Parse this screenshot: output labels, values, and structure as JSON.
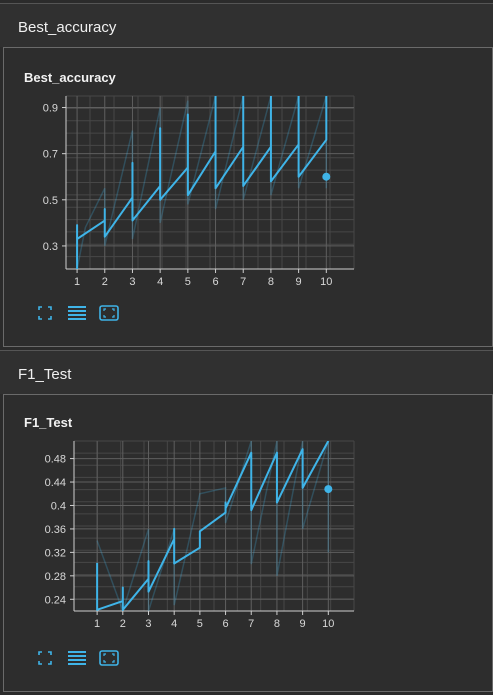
{
  "sections": [
    {
      "header_title": "Best_accuracy",
      "card_title": "Best_accuracy",
      "chart_data": {
        "type": "line",
        "title": "Best_accuracy",
        "xlabel": "",
        "ylabel": "",
        "x_ticks": [
          1,
          2,
          3,
          4,
          5,
          6,
          7,
          8,
          9,
          10
        ],
        "y_ticks": [
          0.3,
          0.5,
          0.7,
          0.9
        ],
        "xlim": [
          0.6,
          11
        ],
        "ylim": [
          0.2,
          0.95
        ],
        "grid": true,
        "line_color": "#3fb4e8",
        "series": [
          {
            "values": [
              [
                1,
                0.2
              ],
              [
                1,
                0.39
              ],
              [
                1,
                0.33
              ],
              [
                2,
                0.41
              ],
              [
                2,
                0.46
              ],
              [
                2,
                0.34
              ],
              [
                3,
                0.51
              ],
              [
                3,
                0.66
              ],
              [
                3,
                0.41
              ],
              [
                4,
                0.56
              ],
              [
                4,
                0.81
              ],
              [
                4,
                0.5
              ],
              [
                5,
                0.64
              ],
              [
                5,
                0.87
              ],
              [
                5,
                0.52
              ],
              [
                6,
                0.71
              ],
              [
                6,
                0.95
              ],
              [
                6,
                0.55
              ],
              [
                7,
                0.73
              ],
              [
                7,
                0.95
              ],
              [
                7,
                0.56
              ],
              [
                8,
                0.73
              ],
              [
                8,
                0.95
              ],
              [
                8,
                0.58
              ],
              [
                9,
                0.74
              ],
              [
                9,
                0.95
              ],
              [
                9,
                0.6
              ],
              [
                10,
                0.76
              ],
              [
                10,
                0.95
              ]
            ],
            "end_point": [
              10,
              0.6
            ]
          }
        ],
        "faint_series": [
          [
            [
              1,
              0.2
            ],
            [
              1.3,
              0.38
            ],
            [
              2,
              0.55
            ],
            [
              2,
              0.3
            ],
            [
              3,
              0.8
            ],
            [
              3,
              0.33
            ],
            [
              4,
              0.9
            ],
            [
              4,
              0.4
            ],
            [
              5,
              0.93
            ],
            [
              5,
              0.48
            ],
            [
              6,
              0.95
            ],
            [
              6,
              0.46
            ],
            [
              7,
              0.95
            ],
            [
              7,
              0.5
            ],
            [
              8,
              0.95
            ],
            [
              8,
              0.52
            ],
            [
              9,
              0.95
            ],
            [
              9,
              0.55
            ],
            [
              10,
              0.95
            ],
            [
              10,
              0.55
            ]
          ]
        ]
      }
    },
    {
      "header_title": "F1_Test",
      "card_title": "F1_Test",
      "chart_data": {
        "type": "line",
        "title": "F1_Test",
        "xlabel": "",
        "ylabel": "",
        "x_ticks": [
          1,
          2,
          3,
          4,
          5,
          6,
          7,
          8,
          9,
          10
        ],
        "y_ticks": [
          0.24,
          0.28,
          0.32,
          0.36,
          0.4,
          0.44,
          0.48
        ],
        "xlim": [
          0.1,
          11
        ],
        "ylim": [
          0.22,
          0.51
        ],
        "grid": true,
        "line_color": "#3fb4e8",
        "series": [
          {
            "values": [
              [
                1,
                0.302
              ],
              [
                1,
                0.222
              ],
              [
                2,
                0.237
              ],
              [
                2,
                0.26
              ],
              [
                2,
                0.222
              ],
              [
                3,
                0.275
              ],
              [
                3,
                0.305
              ],
              [
                3,
                0.253
              ],
              [
                4,
                0.343
              ],
              [
                4,
                0.36
              ],
              [
                4,
                0.301
              ],
              [
                5,
                0.328
              ],
              [
                5,
                0.356
              ],
              [
                6,
                0.388
              ],
              [
                6,
                0.405
              ],
              [
                6,
                0.395
              ],
              [
                7,
                0.49
              ],
              [
                7,
                0.392
              ],
              [
                8,
                0.49
              ],
              [
                8,
                0.405
              ],
              [
                9,
                0.496
              ],
              [
                9,
                0.43
              ],
              [
                10,
                0.51
              ]
            ],
            "end_point": [
              10,
              0.428
            ]
          }
        ],
        "faint_series": [
          [
            [
              1,
              0.34
            ],
            [
              2,
              0.22
            ],
            [
              3,
              0.36
            ],
            [
              3,
              0.22
            ],
            [
              4,
              0.36
            ],
            [
              4,
              0.23
            ],
            [
              5,
              0.42
            ],
            [
              6,
              0.43
            ],
            [
              6,
              0.37
            ],
            [
              7,
              0.51
            ],
            [
              7,
              0.3
            ],
            [
              8,
              0.51
            ],
            [
              8,
              0.28
            ],
            [
              9,
              0.51
            ],
            [
              9,
              0.36
            ],
            [
              10,
              0.51
            ],
            [
              10,
              0.32
            ]
          ]
        ]
      }
    }
  ],
  "toolbar": {
    "fit_icon": "fit-domain-icon",
    "log_icon": "log-scale-icon",
    "expand_icon": "expand-icon"
  },
  "colors": {
    "accent": "#3fb4e8",
    "background": "#2b2b2b",
    "grid": "#555555"
  }
}
